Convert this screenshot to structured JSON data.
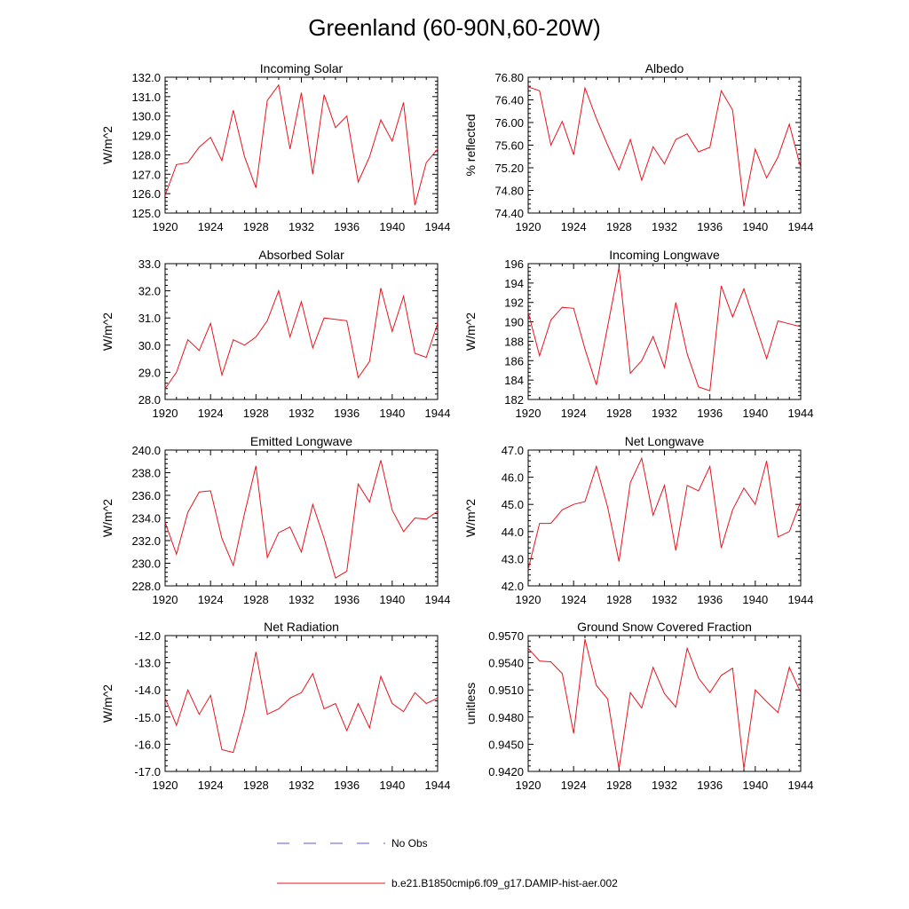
{
  "figure_title": "Greenland (60-90N,60-20W)",
  "legend": {
    "obs_label": "No Obs",
    "model_label": "b.e21.B1850cmip6.f09_g17.DAMIP-hist-aer.002",
    "obs_color": "#5a5ae6",
    "model_color": "#e8141e"
  },
  "chart_data": [
    {
      "type": "line",
      "title": "Incoming Solar",
      "xlabel": "",
      "ylabel": "W/m^2",
      "xlim": [
        1920,
        1944
      ],
      "ylim": [
        125.0,
        132.0
      ],
      "xticks": [
        1920,
        1924,
        1928,
        1932,
        1936,
        1940,
        1944
      ],
      "yticks": [
        125.0,
        126.0,
        127.0,
        128.0,
        129.0,
        130.0,
        131.0,
        132.0
      ],
      "ydecimals": 1,
      "x": [
        1920,
        1921,
        1922,
        1923,
        1924,
        1925,
        1926,
        1927,
        1928,
        1929,
        1930,
        1931,
        1932,
        1933,
        1934,
        1935,
        1936,
        1937,
        1938,
        1939,
        1940,
        1941,
        1942,
        1943,
        1944
      ],
      "series": [
        {
          "values": [
            125.9,
            127.5,
            127.6,
            128.4,
            128.9,
            127.7,
            130.3,
            127.9,
            126.3,
            130.8,
            131.6,
            128.3,
            131.2,
            127.0,
            131.1,
            129.4,
            130.0,
            126.6,
            127.9,
            129.8,
            128.7,
            130.7,
            125.4,
            127.6,
            128.3
          ]
        }
      ]
    },
    {
      "type": "line",
      "title": "Albedo",
      "xlabel": "",
      "ylabel": "% reflected",
      "xlim": [
        1920,
        1944
      ],
      "ylim": [
        74.4,
        76.8
      ],
      "xticks": [
        1920,
        1924,
        1928,
        1932,
        1936,
        1940,
        1944
      ],
      "yticks": [
        74.4,
        74.8,
        75.2,
        75.6,
        76.0,
        76.4,
        76.8
      ],
      "ydecimals": 2,
      "x": [
        1920,
        1921,
        1922,
        1923,
        1924,
        1925,
        1926,
        1927,
        1928,
        1929,
        1930,
        1931,
        1932,
        1933,
        1934,
        1935,
        1936,
        1937,
        1938,
        1939,
        1940,
        1941,
        1942,
        1943,
        1944
      ],
      "series": [
        {
          "values": [
            76.63,
            76.56,
            75.6,
            76.02,
            75.43,
            76.61,
            76.07,
            75.6,
            75.16,
            75.7,
            74.98,
            75.57,
            75.27,
            75.7,
            75.8,
            75.48,
            75.56,
            76.56,
            76.22,
            74.52,
            75.53,
            75.02,
            75.39,
            75.97,
            75.2
          ]
        }
      ]
    },
    {
      "type": "line",
      "title": "Absorbed Solar",
      "xlabel": "",
      "ylabel": "W/m^2",
      "xlim": [
        1920,
        1944
      ],
      "ylim": [
        28.0,
        33.0
      ],
      "xticks": [
        1920,
        1924,
        1928,
        1932,
        1936,
        1940,
        1944
      ],
      "yticks": [
        28.0,
        29.0,
        30.0,
        31.0,
        32.0,
        33.0
      ],
      "ydecimals": 1,
      "x": [
        1920,
        1921,
        1922,
        1923,
        1924,
        1925,
        1926,
        1927,
        1928,
        1929,
        1930,
        1931,
        1932,
        1933,
        1934,
        1935,
        1936,
        1937,
        1938,
        1939,
        1940,
        1941,
        1942,
        1943,
        1944
      ],
      "series": [
        {
          "values": [
            28.4,
            29.0,
            30.2,
            29.8,
            30.8,
            28.9,
            30.2,
            30.0,
            30.3,
            30.9,
            32.0,
            30.3,
            31.6,
            29.9,
            31.0,
            30.95,
            30.9,
            28.8,
            29.4,
            32.1,
            30.5,
            31.8,
            29.7,
            29.55,
            30.8
          ]
        }
      ]
    },
    {
      "type": "line",
      "title": "Incoming Longwave",
      "xlabel": "",
      "ylabel": "W/m^2",
      "xlim": [
        1920,
        1944
      ],
      "ylim": [
        182,
        196
      ],
      "xticks": [
        1920,
        1924,
        1928,
        1932,
        1936,
        1940,
        1944
      ],
      "yticks": [
        182,
        184,
        186,
        188,
        190,
        192,
        194,
        196
      ],
      "ydecimals": 0,
      "x": [
        1920,
        1921,
        1922,
        1923,
        1924,
        1925,
        1926,
        1927,
        1928,
        1929,
        1930,
        1931,
        1932,
        1933,
        1934,
        1935,
        1936,
        1937,
        1938,
        1939,
        1940,
        1941,
        1942,
        1943,
        1944
      ],
      "series": [
        {
          "values": [
            191.0,
            186.5,
            190.2,
            191.5,
            191.4,
            187.2,
            183.5,
            189.5,
            195.6,
            184.7,
            186.0,
            188.5,
            185.3,
            192.0,
            186.7,
            183.3,
            182.9,
            193.7,
            190.5,
            193.4,
            189.8,
            186.2,
            190.1,
            189.8,
            189.5
          ]
        }
      ]
    },
    {
      "type": "line",
      "title": "Emitted Longwave",
      "xlabel": "",
      "ylabel": "W/m^2",
      "xlim": [
        1920,
        1944
      ],
      "ylim": [
        228.0,
        240.0
      ],
      "xticks": [
        1920,
        1924,
        1928,
        1932,
        1936,
        1940,
        1944
      ],
      "yticks": [
        228.0,
        230.0,
        232.0,
        234.0,
        236.0,
        238.0,
        240.0
      ],
      "ydecimals": 1,
      "x": [
        1920,
        1921,
        1922,
        1923,
        1924,
        1925,
        1926,
        1927,
        1928,
        1929,
        1930,
        1931,
        1932,
        1933,
        1934,
        1935,
        1936,
        1937,
        1938,
        1939,
        1940,
        1941,
        1942,
        1943,
        1944
      ],
      "series": [
        {
          "values": [
            233.6,
            230.8,
            234.5,
            236.3,
            236.4,
            232.2,
            229.8,
            234.4,
            238.6,
            230.5,
            232.7,
            233.2,
            231.0,
            235.2,
            232.2,
            228.7,
            229.3,
            237.0,
            235.4,
            239.1,
            234.7,
            232.8,
            234.0,
            233.9,
            234.6
          ]
        }
      ]
    },
    {
      "type": "line",
      "title": "Net Longwave",
      "xlabel": "",
      "ylabel": "W/m^2",
      "xlim": [
        1920,
        1944
      ],
      "ylim": [
        42.0,
        47.0
      ],
      "xticks": [
        1920,
        1924,
        1928,
        1932,
        1936,
        1940,
        1944
      ],
      "yticks": [
        42.0,
        43.0,
        44.0,
        45.0,
        46.0,
        47.0
      ],
      "ydecimals": 1,
      "x": [
        1920,
        1921,
        1922,
        1923,
        1924,
        1925,
        1926,
        1927,
        1928,
        1929,
        1930,
        1931,
        1932,
        1933,
        1934,
        1935,
        1936,
        1937,
        1938,
        1939,
        1940,
        1941,
        1942,
        1943,
        1944
      ],
      "series": [
        {
          "values": [
            42.6,
            44.3,
            44.3,
            44.8,
            45.0,
            45.1,
            46.4,
            44.9,
            42.9,
            45.8,
            46.7,
            44.6,
            45.7,
            43.3,
            45.7,
            45.5,
            46.4,
            43.4,
            44.8,
            45.6,
            45.0,
            46.6,
            43.8,
            44.0,
            45.1
          ]
        }
      ]
    },
    {
      "type": "line",
      "title": "Net Radiation",
      "xlabel": "",
      "ylabel": "W/m^2",
      "xlim": [
        1920,
        1944
      ],
      "ylim": [
        -17.0,
        -12.0
      ],
      "xticks": [
        1920,
        1924,
        1928,
        1932,
        1936,
        1940,
        1944
      ],
      "yticks": [
        -17.0,
        -16.0,
        -15.0,
        -14.0,
        -13.0,
        -12.0
      ],
      "ydecimals": 1,
      "x": [
        1920,
        1921,
        1922,
        1923,
        1924,
        1925,
        1926,
        1927,
        1928,
        1929,
        1930,
        1931,
        1932,
        1933,
        1934,
        1935,
        1936,
        1937,
        1938,
        1939,
        1940,
        1941,
        1942,
        1943,
        1944
      ],
      "series": [
        {
          "values": [
            -14.3,
            -15.3,
            -14.0,
            -14.9,
            -14.2,
            -16.2,
            -16.3,
            -14.8,
            -12.6,
            -14.9,
            -14.7,
            -14.3,
            -14.1,
            -13.4,
            -14.7,
            -14.5,
            -15.5,
            -14.5,
            -15.4,
            -13.5,
            -14.5,
            -14.8,
            -14.1,
            -14.5,
            -14.3
          ]
        }
      ]
    },
    {
      "type": "line",
      "title": "Ground Snow Covered Fraction",
      "xlabel": "",
      "ylabel": "unitless",
      "xlim": [
        1920,
        1944
      ],
      "ylim": [
        0.942,
        0.957
      ],
      "xticks": [
        1920,
        1924,
        1928,
        1932,
        1936,
        1940,
        1944
      ],
      "yticks": [
        0.942,
        0.945,
        0.948,
        0.951,
        0.954,
        0.957
      ],
      "ydecimals": 4,
      "x": [
        1920,
        1921,
        1922,
        1923,
        1924,
        1925,
        1926,
        1927,
        1928,
        1929,
        1930,
        1931,
        1932,
        1933,
        1934,
        1935,
        1936,
        1937,
        1938,
        1939,
        1940,
        1941,
        1942,
        1943,
        1944
      ],
      "series": [
        {
          "values": [
            0.9556,
            0.9542,
            0.9541,
            0.9528,
            0.9462,
            0.9566,
            0.9515,
            0.95,
            0.9423,
            0.9507,
            0.949,
            0.9535,
            0.9506,
            0.9491,
            0.9556,
            0.9523,
            0.9507,
            0.9526,
            0.9534,
            0.9423,
            0.951,
            0.9497,
            0.9485,
            0.9535,
            0.9507
          ]
        }
      ]
    }
  ]
}
